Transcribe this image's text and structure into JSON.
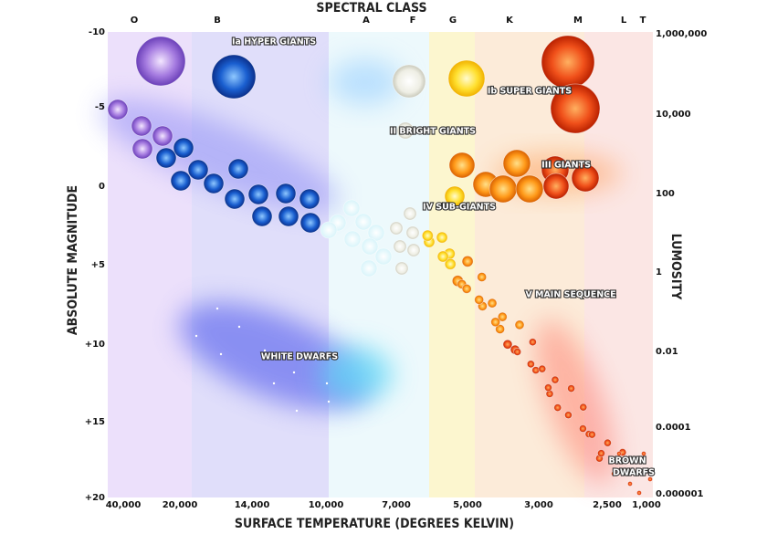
{
  "title": "SPECTRAL CLASS",
  "spectral_classes": [
    "O",
    "B",
    "A",
    "F",
    "G",
    "K",
    "M",
    "L",
    "T"
  ],
  "x_axis": {
    "title": "SURFACE TEMPERATURE (DEGREES KELVIN)",
    "labels": [
      "40,000",
      "20,000",
      "14,000",
      "10,000",
      "7,000",
      "5,000",
      "3,000",
      "2,500",
      "1,000"
    ]
  },
  "left_axis": {
    "title": "ABSOLUTE MAGNITUDE",
    "labels": [
      "-10",
      "-5",
      "0",
      "+5",
      "+10",
      "+15",
      "+20"
    ]
  },
  "right_axis": {
    "title": "LUMOSITY",
    "labels": [
      "1,000,000",
      "10,000",
      "100",
      "1",
      "0.01",
      "0.0001",
      "0.000001"
    ]
  },
  "regions": [
    "Ia HYPER GIANTS",
    "Ib SUPER GIANTS",
    "II BRIGHT GIANTS",
    "III GIANTS",
    "IV SUB-GIANTS",
    "V MAIN SEQUENCE",
    "WHITE DWARFS",
    "BROWN",
    "DWARFS"
  ]
}
